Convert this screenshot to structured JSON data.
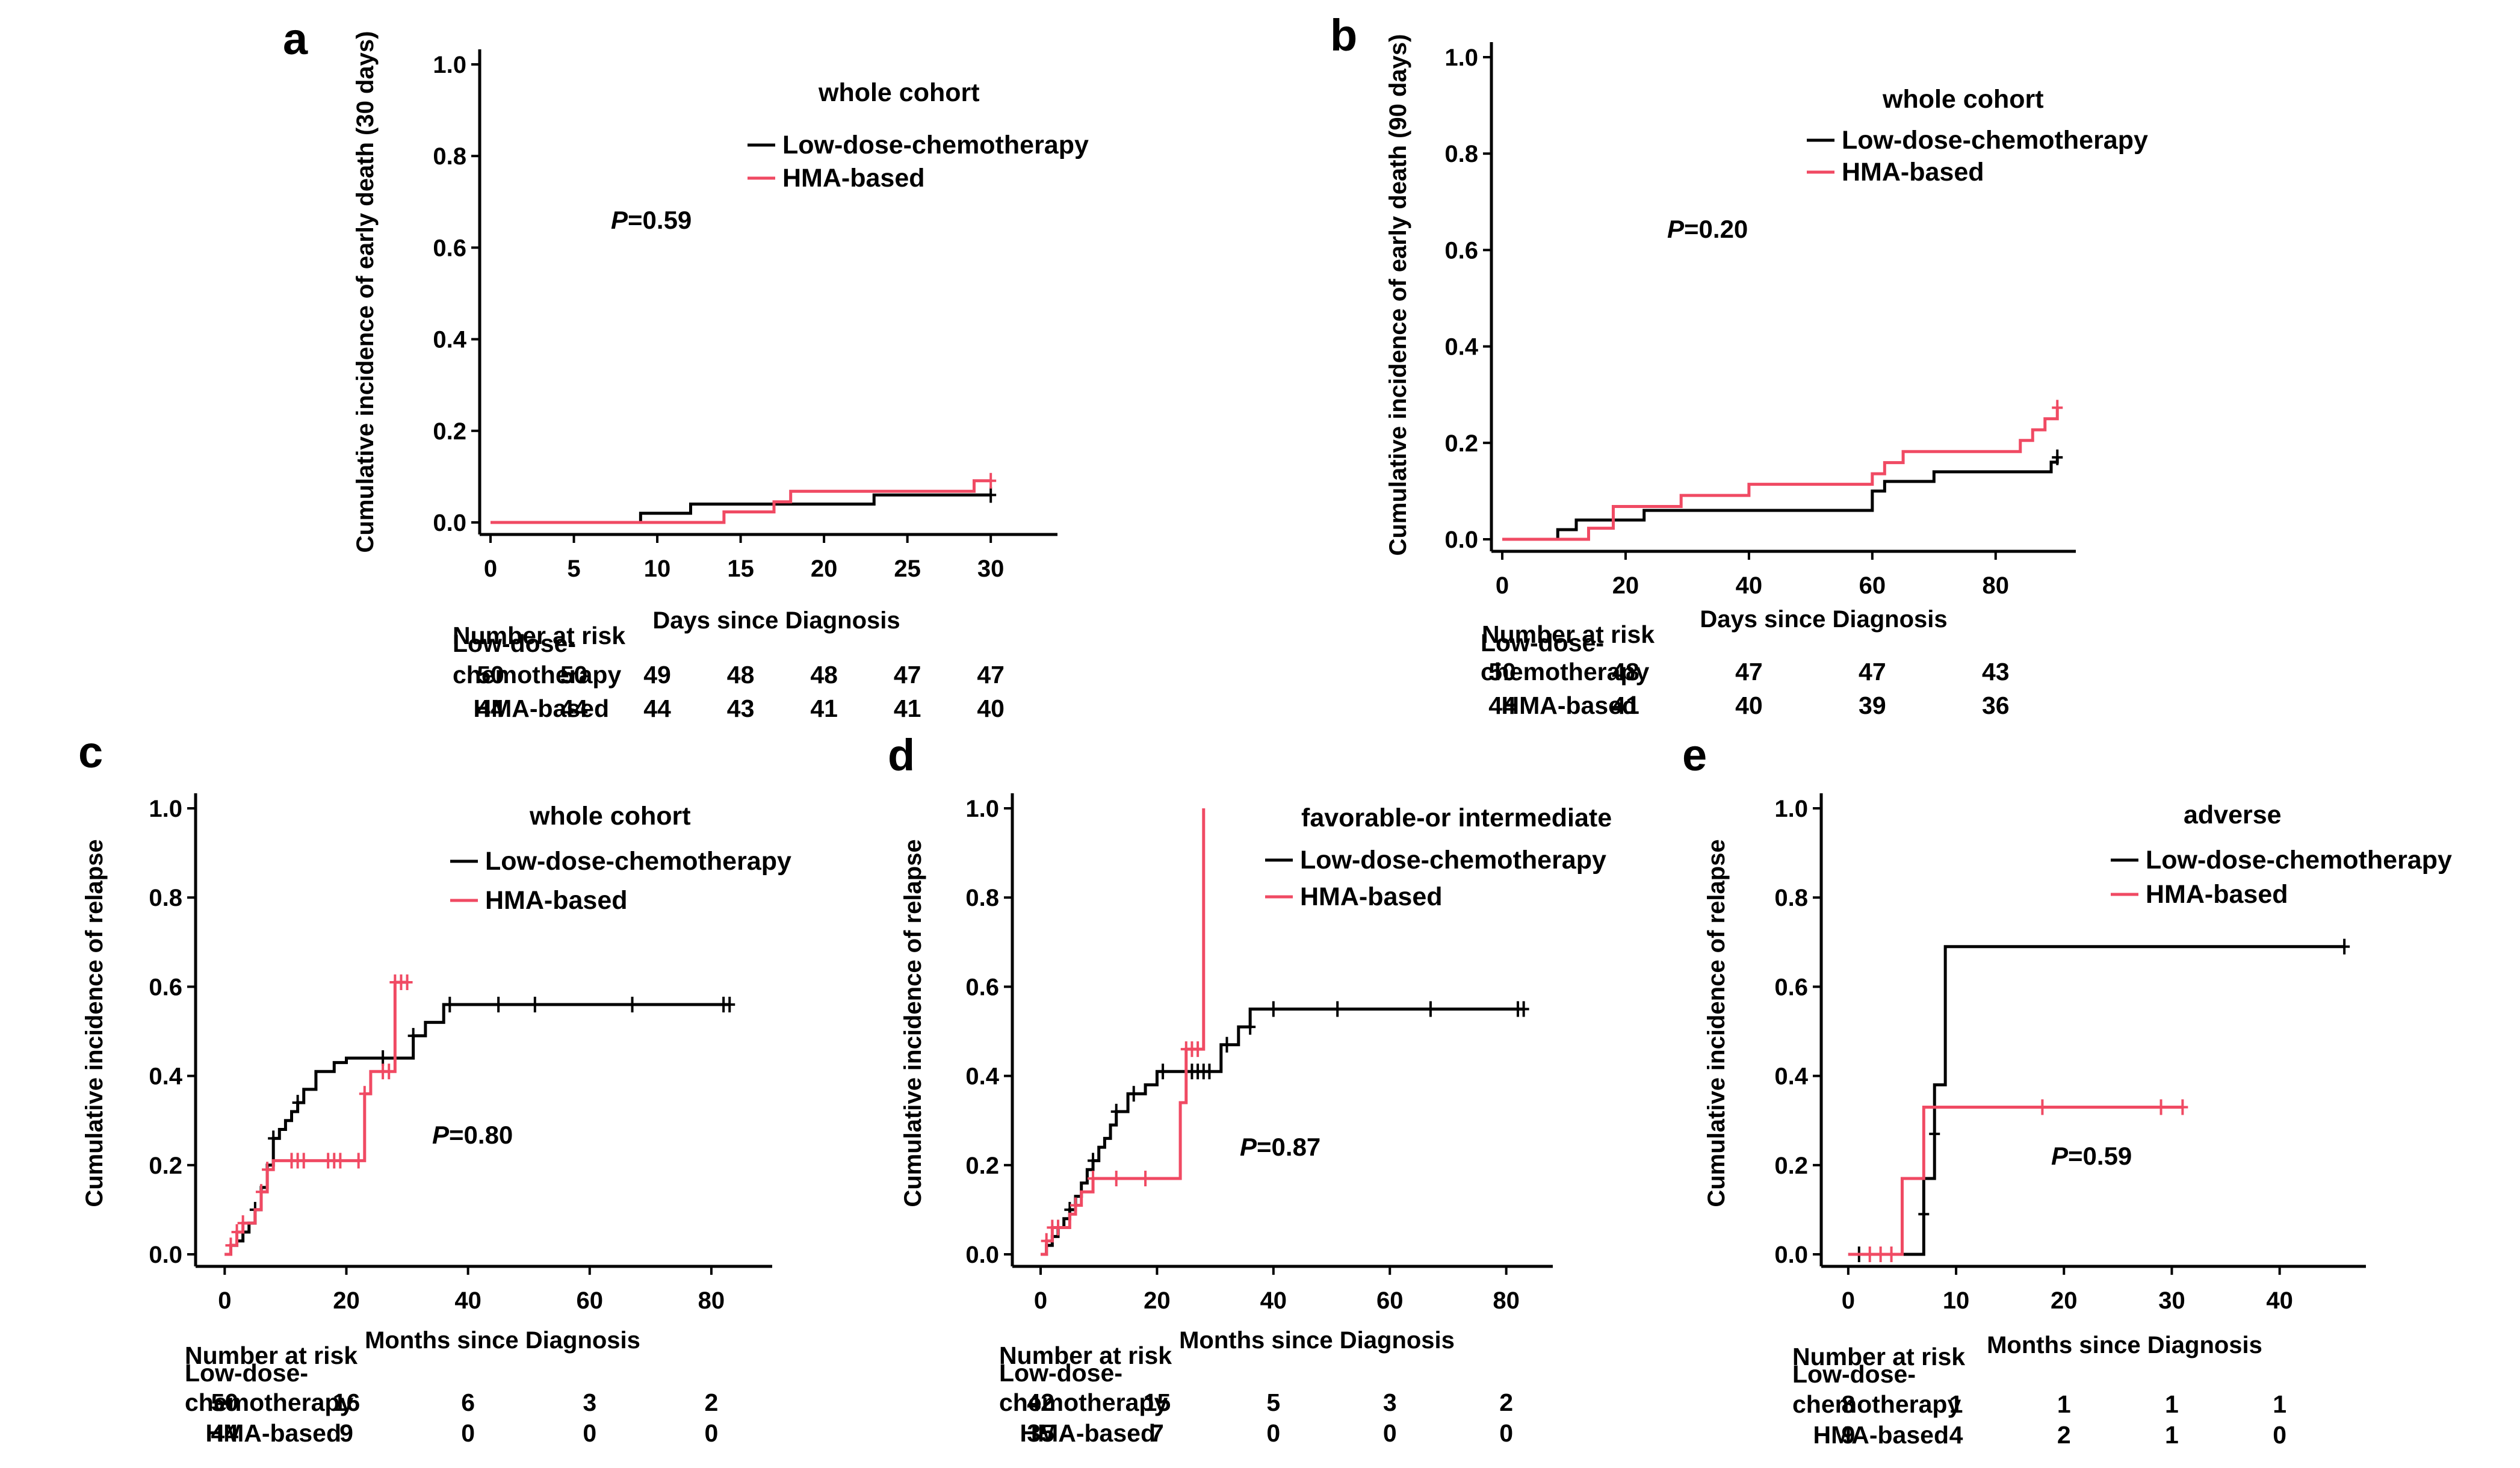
{
  "colors": {
    "low_dose": "#000000",
    "hma": "#f04a63"
  },
  "chart_data": [
    {
      "panel": "a",
      "type": "line",
      "subtitle": "whole cohort",
      "ylabel": "Cumulative incidence of early death (30 days)",
      "xlabel": "Days since Diagnosis",
      "xlim": [
        0,
        34
      ],
      "ylim": [
        0,
        1.0
      ],
      "xticks": [
        0,
        5,
        10,
        15,
        20,
        25,
        30
      ],
      "xtick_labels": [
        "0",
        "5",
        "10",
        "15",
        "20",
        "25",
        "30"
      ],
      "yticks": [
        0,
        0.2,
        0.4,
        0.6,
        0.8,
        1.0
      ],
      "ytick_labels": [
        "0.0",
        "0.2",
        "0.4",
        "0.6",
        "0.8",
        "1.0"
      ],
      "p_label": "P",
      "p_value": "=0.59",
      "series": [
        {
          "name": "Low-dose-chemotherapy",
          "color_key": "low_dose",
          "x": [
            0,
            9,
            12,
            18,
            23,
            30
          ],
          "y": [
            0,
            0.02,
            0.04,
            0.04,
            0.06,
            0.06
          ],
          "censored": [
            [
              30,
              0.06
            ]
          ]
        },
        {
          "name": "HMA-based",
          "color_key": "hma",
          "x": [
            0,
            14,
            17,
            18,
            29,
            30
          ],
          "y": [
            0,
            0.023,
            0.045,
            0.068,
            0.091,
            0.091
          ],
          "censored": [
            [
              30,
              0.091
            ]
          ]
        }
      ],
      "risk_table": {
        "title": "Number at risk",
        "rows": [
          {
            "label_lines": [
              "Low-dose-",
              "chemotherapy"
            ],
            "values": [
              "50",
              "50",
              "49",
              "48",
              "48",
              "47",
              "47"
            ]
          },
          {
            "label_lines": [
              "HMA-based"
            ],
            "values": [
              "44",
              "44",
              "44",
              "43",
              "41",
              "41",
              "40"
            ]
          }
        ]
      }
    },
    {
      "panel": "b",
      "type": "line",
      "subtitle": "whole cohort",
      "ylabel": "Cumulative incidence of early death (90 days)",
      "xlabel": "Days since Diagnosis",
      "xlim": [
        0,
        93
      ],
      "ylim": [
        0,
        1.0
      ],
      "xticks": [
        0,
        20,
        40,
        60,
        80
      ],
      "xtick_labels": [
        "0",
        "20",
        "40",
        "60",
        "80"
      ],
      "yticks": [
        0,
        0.2,
        0.4,
        0.6,
        0.8,
        1.0
      ],
      "ytick_labels": [
        "0.0",
        "0.2",
        "0.4",
        "0.6",
        "0.8",
        "1.0"
      ],
      "p_label": "P",
      "p_value": "=0.20",
      "series": [
        {
          "name": "Low-dose-chemotherapy",
          "color_key": "low_dose",
          "x": [
            0,
            9,
            12,
            16,
            23,
            60,
            62,
            70,
            80,
            89,
            90
          ],
          "y": [
            0,
            0.02,
            0.04,
            0.04,
            0.06,
            0.1,
            0.12,
            0.14,
            0.14,
            0.16,
            0.17
          ],
          "censored": [
            [
              90,
              0.17
            ]
          ]
        },
        {
          "name": "HMA-based",
          "color_key": "hma",
          "x": [
            0,
            14,
            18,
            29,
            40,
            60,
            62,
            65,
            84,
            86,
            88,
            90
          ],
          "y": [
            0,
            0.023,
            0.068,
            0.091,
            0.114,
            0.136,
            0.159,
            0.182,
            0.205,
            0.227,
            0.25,
            0.273
          ],
          "censored": [
            [
              90,
              0.273
            ]
          ]
        }
      ],
      "risk_table": {
        "title": "Number at risk",
        "rows": [
          {
            "label_lines": [
              "Low-dose-",
              "chemotherapy"
            ],
            "values": [
              "50",
              "48",
              "47",
              "47",
              "43"
            ]
          },
          {
            "label_lines": [
              "HMA-based"
            ],
            "values": [
              "44",
              "41",
              "40",
              "39",
              "36"
            ]
          }
        ]
      }
    },
    {
      "panel": "c",
      "type": "line",
      "subtitle": "whole cohort",
      "ylabel": "Cumulative incidence of relapse",
      "xlabel": "Months since Diagnosis",
      "xlim": [
        -3,
        90
      ],
      "ylim": [
        0,
        1.0
      ],
      "xticks": [
        0,
        20,
        40,
        60,
        80
      ],
      "xtick_labels": [
        "0",
        "20",
        "40",
        "60",
        "80"
      ],
      "yticks": [
        0,
        0.2,
        0.4,
        0.6,
        0.8,
        1.0
      ],
      "ytick_labels": [
        "0.0",
        "0.2",
        "0.4",
        "0.6",
        "0.8",
        "1.0"
      ],
      "p_label": "P",
      "p_value": "=0.80",
      "series": [
        {
          "name": "Low-dose-chemotherapy",
          "color_key": "low_dose",
          "x": [
            0,
            1,
            2,
            3,
            4,
            5,
            6,
            7,
            8,
            9,
            10,
            11,
            12,
            13,
            15,
            18,
            20,
            25,
            28,
            31,
            33,
            36,
            45,
            83
          ],
          "y": [
            0,
            0.02,
            0.03,
            0.05,
            0.07,
            0.1,
            0.15,
            0.2,
            0.26,
            0.28,
            0.3,
            0.32,
            0.34,
            0.37,
            0.41,
            0.43,
            0.44,
            0.44,
            0.44,
            0.49,
            0.52,
            0.56,
            0.56,
            0.56
          ],
          "censored": [
            [
              3,
              0.05
            ],
            [
              5,
              0.1
            ],
            [
              8,
              0.26
            ],
            [
              12,
              0.34
            ],
            [
              26,
              0.44
            ],
            [
              28,
              0.44
            ],
            [
              31,
              0.49
            ],
            [
              37,
              0.56
            ],
            [
              45,
              0.56
            ],
            [
              51,
              0.56
            ],
            [
              67,
              0.56
            ],
            [
              82,
              0.56
            ],
            [
              83,
              0.56
            ]
          ]
        },
        {
          "name": "HMA-based",
          "color_key": "hma",
          "x": [
            0,
            1,
            2,
            3,
            5,
            6,
            7,
            8,
            22,
            23,
            24,
            27,
            28,
            30
          ],
          "y": [
            0,
            0.02,
            0.05,
            0.07,
            0.1,
            0.14,
            0.19,
            0.21,
            0.21,
            0.36,
            0.41,
            0.41,
            0.61,
            0.61
          ],
          "censored": [
            [
              1,
              0.02
            ],
            [
              2,
              0.05
            ],
            [
              3,
              0.07
            ],
            [
              6,
              0.14
            ],
            [
              7,
              0.19
            ],
            [
              11,
              0.21
            ],
            [
              12,
              0.21
            ],
            [
              13,
              0.21
            ],
            [
              17,
              0.21
            ],
            [
              18,
              0.21
            ],
            [
              19,
              0.21
            ],
            [
              22,
              0.21
            ],
            [
              23,
              0.36
            ],
            [
              26,
              0.41
            ],
            [
              27,
              0.41
            ],
            [
              28,
              0.61
            ],
            [
              29,
              0.61
            ],
            [
              30,
              0.61
            ]
          ]
        }
      ],
      "risk_table": {
        "title": "Number at risk",
        "rows": [
          {
            "label_lines": [
              "Low-dose-",
              "chemotherapy"
            ],
            "values": [
              "50",
              "16",
              "6",
              "3",
              "2"
            ]
          },
          {
            "label_lines": [
              "HMA-based"
            ],
            "values": [
              "44",
              "9",
              "0",
              "0",
              "0"
            ]
          }
        ]
      }
    },
    {
      "panel": "d",
      "type": "line",
      "subtitle": "favorable-or intermediate",
      "ylabel": "Cumulative incidence of relapse",
      "xlabel": "Months since Diagnosis",
      "xlim": [
        -3,
        88
      ],
      "ylim": [
        0,
        1.0
      ],
      "xticks": [
        0,
        20,
        40,
        60,
        80
      ],
      "xtick_labels": [
        "0",
        "20",
        "40",
        "60",
        "80"
      ],
      "yticks": [
        0,
        0.2,
        0.4,
        0.6,
        0.8,
        1.0
      ],
      "ytick_labels": [
        "0.0",
        "0.2",
        "0.4",
        "0.6",
        "0.8",
        "1.0"
      ],
      "p_label": "P",
      "p_value": "=0.87",
      "series": [
        {
          "name": "Low-dose-chemotherapy",
          "color_key": "low_dose",
          "x": [
            0,
            1,
            2,
            3,
            4,
            5,
            6,
            7,
            8,
            9,
            10,
            11,
            12,
            13,
            15,
            18,
            20,
            25,
            28,
            31,
            34,
            36,
            83
          ],
          "y": [
            0,
            0.02,
            0.04,
            0.06,
            0.08,
            0.1,
            0.13,
            0.16,
            0.19,
            0.21,
            0.24,
            0.26,
            0.29,
            0.32,
            0.36,
            0.38,
            0.41,
            0.41,
            0.41,
            0.47,
            0.51,
            0.55,
            0.55
          ],
          "censored": [
            [
              3,
              0.06
            ],
            [
              5,
              0.1
            ],
            [
              9,
              0.21
            ],
            [
              13,
              0.32
            ],
            [
              16,
              0.36
            ],
            [
              21,
              0.41
            ],
            [
              26,
              0.41
            ],
            [
              27,
              0.41
            ],
            [
              28,
              0.41
            ],
            [
              29,
              0.41
            ],
            [
              32,
              0.47
            ],
            [
              36,
              0.51
            ],
            [
              40,
              0.55
            ],
            [
              51,
              0.55
            ],
            [
              67,
              0.55
            ],
            [
              82,
              0.55
            ],
            [
              83,
              0.55
            ]
          ]
        },
        {
          "name": "HMA-based",
          "color_key": "hma",
          "x": [
            0,
            1,
            2,
            3,
            5,
            6,
            7,
            9,
            23,
            24,
            25,
            27,
            28
          ],
          "y": [
            0,
            0.03,
            0.06,
            0.06,
            0.09,
            0.11,
            0.14,
            0.17,
            0.17,
            0.34,
            0.46,
            0.46,
            1.0
          ],
          "censored": [
            [
              1,
              0.03
            ],
            [
              2,
              0.06
            ],
            [
              3,
              0.06
            ],
            [
              6,
              0.11
            ],
            [
              9,
              0.17
            ],
            [
              13,
              0.17
            ],
            [
              18,
              0.17
            ],
            [
              25,
              0.46
            ],
            [
              26,
              0.46
            ],
            [
              27,
              0.46
            ]
          ]
        }
      ],
      "risk_table": {
        "title": "Number at risk",
        "rows": [
          {
            "label_lines": [
              "Low-dose-",
              "chemotherapy"
            ],
            "values": [
              "42",
              "15",
              "5",
              "3",
              "2"
            ]
          },
          {
            "label_lines": [
              "HMA-based"
            ],
            "values": [
              "35",
              "7",
              "0",
              "0",
              "0"
            ]
          }
        ]
      }
    },
    {
      "panel": "e",
      "type": "line",
      "subtitle": "adverse",
      "ylabel": "Cumulative incidence of relapse",
      "xlabel": "Months since Diagnosis",
      "xlim": [
        -1.5,
        48
      ],
      "ylim": [
        0,
        1.0
      ],
      "xticks": [
        0,
        10,
        20,
        30,
        40
      ],
      "xtick_labels": [
        "0",
        "10",
        "20",
        "30",
        "40"
      ],
      "yticks": [
        0,
        0.2,
        0.4,
        0.6,
        0.8,
        1.0
      ],
      "ytick_labels": [
        "0.0",
        "0.2",
        "0.4",
        "0.6",
        "0.8",
        "1.0"
      ],
      "p_label": "P",
      "p_value": "=0.59",
      "series": [
        {
          "name": "Low-dose-chemotherapy",
          "color_key": "low_dose",
          "x": [
            0,
            7,
            8,
            9,
            46
          ],
          "y": [
            0,
            0.17,
            0.38,
            0.69,
            0.69
          ],
          "censored": [
            [
              1,
              0
            ],
            [
              7,
              0.09
            ],
            [
              8,
              0.27
            ],
            [
              46,
              0.69
            ]
          ]
        },
        {
          "name": "HMA-based",
          "color_key": "hma",
          "x": [
            0,
            5,
            7,
            31
          ],
          "y": [
            0,
            0.17,
            0.33,
            0.33
          ],
          "censored": [
            [
              2,
              0
            ],
            [
              3,
              0
            ],
            [
              4,
              0
            ],
            [
              18,
              0.33
            ],
            [
              29,
              0.33
            ],
            [
              31,
              0.33
            ]
          ]
        }
      ],
      "risk_table": {
        "title": "Number at risk",
        "rows": [
          {
            "label_lines": [
              "Low-dose-",
              "chemotherapy"
            ],
            "values": [
              "8",
              "1",
              "1",
              "1",
              "1"
            ]
          },
          {
            "label_lines": [
              "HMA-based"
            ],
            "values": [
              "9",
              "4",
              "2",
              "1",
              "0"
            ]
          }
        ]
      }
    }
  ]
}
